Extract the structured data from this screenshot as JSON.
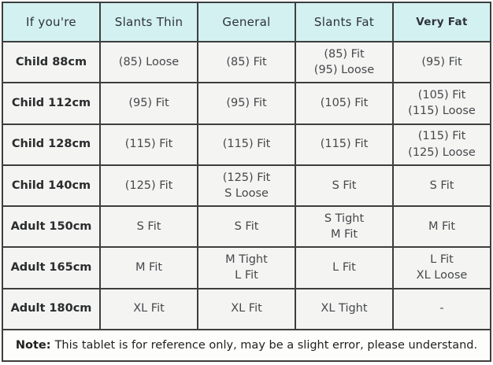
{
  "colors": {
    "header_bg": "#d3f1f1",
    "cell_bg": "#f4f4f2",
    "note_bg": "#fdfdfc",
    "border": "#3e3e3e",
    "text": "#46484c"
  },
  "chart_data": {
    "type": "table",
    "columns": [
      "If you're",
      "Slants Thin",
      "General",
      "Slants Fat",
      "Very Fat"
    ],
    "rows": [
      {
        "label": "Child 88cm",
        "cells": [
          "(85) Loose",
          "(85) Fit",
          "(85) Fit\n(95) Loose",
          "(95) Fit"
        ]
      },
      {
        "label": "Child 112cm",
        "cells": [
          "(95) Fit",
          "(95) Fit",
          "(105) Fit",
          "(105) Fit\n(115) Loose"
        ]
      },
      {
        "label": "Child 128cm",
        "cells": [
          "(115) Fit",
          "(115) Fit",
          "(115) Fit",
          "(115) Fit\n(125) Loose"
        ]
      },
      {
        "label": "Child 140cm",
        "cells": [
          "(125) Fit",
          "(125) Fit\nS Loose",
          "S Fit",
          "S Fit"
        ]
      },
      {
        "label": "Adult 150cm",
        "cells": [
          "S Fit",
          "S Fit",
          "S Tight\nM Fit",
          "M Fit"
        ]
      },
      {
        "label": "Adult 165cm",
        "cells": [
          "M Fit",
          "M Tight\nL Fit",
          "L Fit",
          "L Fit\nXL Loose"
        ]
      },
      {
        "label": "Adult 180cm",
        "cells": [
          "XL Fit",
          "XL Fit",
          "XL Tight",
          "-"
        ]
      }
    ],
    "note": {
      "label": "Note:",
      "text": "This tablet is for reference only, may be a slight error, please understand."
    }
  }
}
